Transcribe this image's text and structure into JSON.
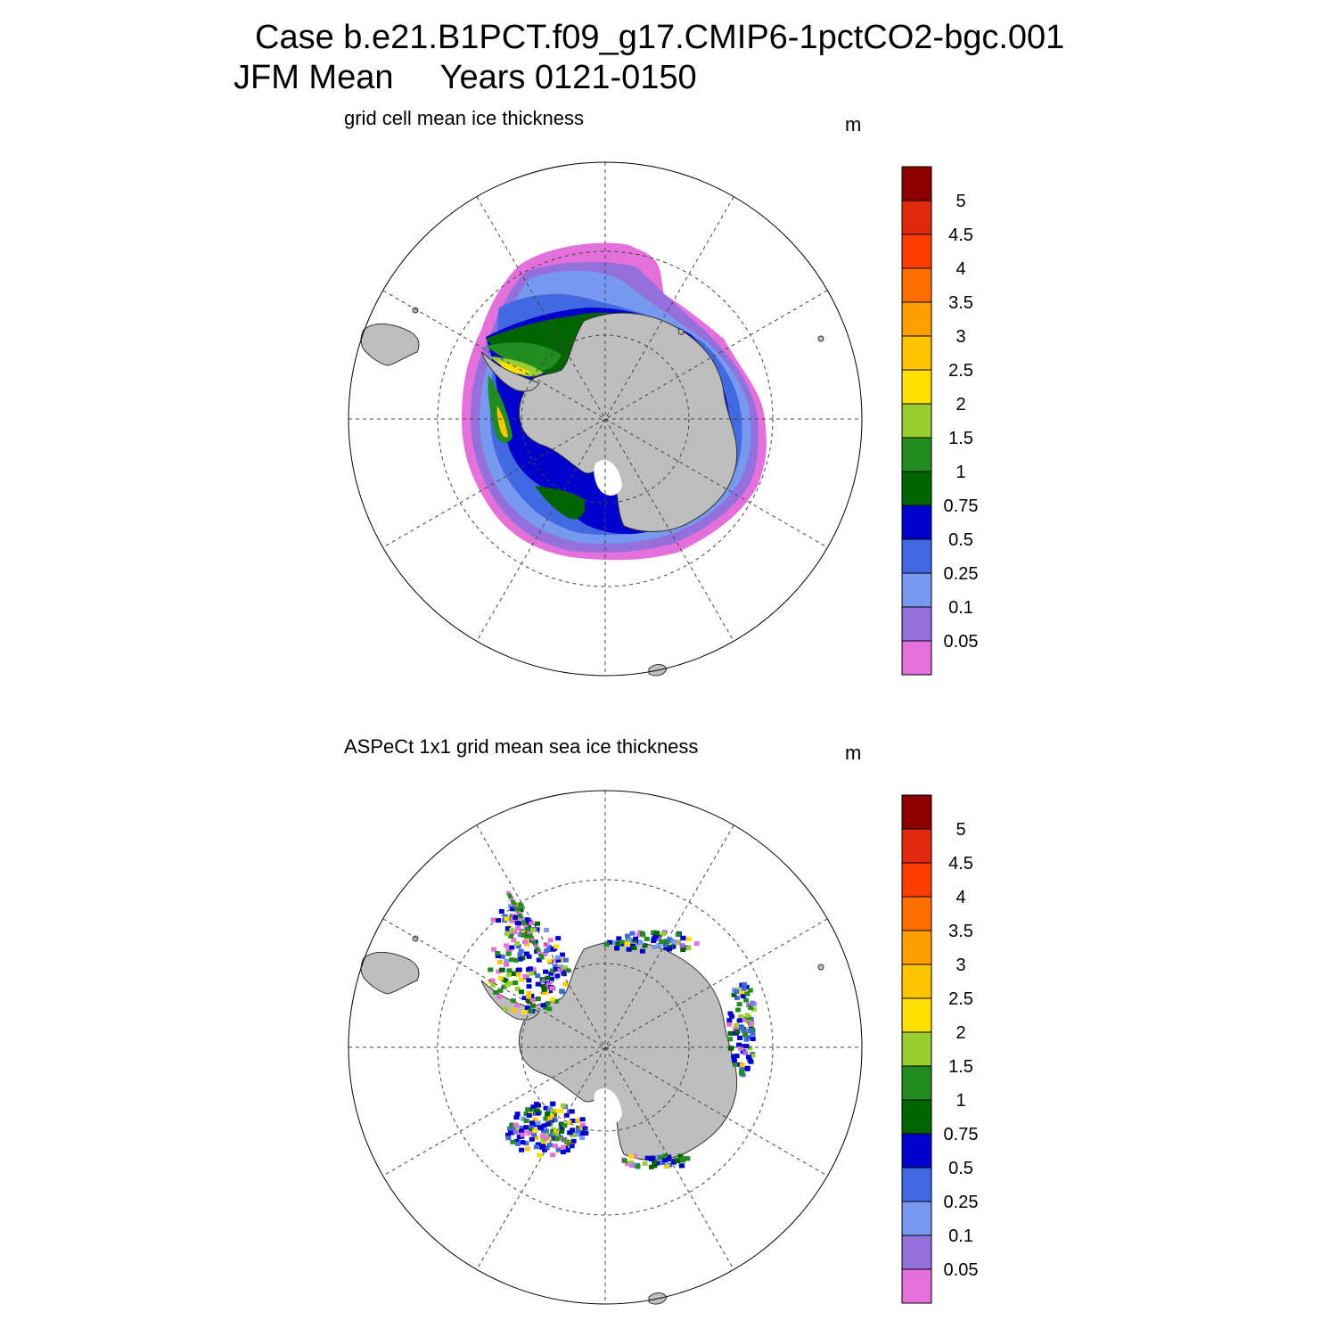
{
  "header": {
    "line1": "Case b.e21.B1PCT.f09_g17.CMIP6-1pctCO2-bgc.001",
    "line2": "JFM Mean     Years 0121-0150"
  },
  "panels": [
    {
      "id": "model",
      "title": "grid cell mean ice thickness",
      "units": "m"
    },
    {
      "id": "obs",
      "title": "ASPeCt 1x1 grid mean sea ice thickness",
      "units": "m"
    }
  ],
  "colorbar": {
    "colors": [
      "#e370db",
      "#9370db",
      "#7799f0",
      "#4169e1",
      "#0000cd",
      "#006400",
      "#228b22",
      "#9acd32",
      "#ffe000",
      "#ffc400",
      "#ffa000",
      "#ff6e00",
      "#ff3c00",
      "#e0280e",
      "#8b0000"
    ],
    "labels": [
      "0.05",
      "0.1",
      "0.25",
      "0.5",
      "0.75",
      "1",
      "1.5",
      "2",
      "2.5",
      "3",
      "3.5",
      "4",
      "4.5",
      "5"
    ]
  },
  "map": {
    "projection": "south polar stereographic",
    "land_color": "#bebebe",
    "meridians_deg": [
      0,
      30,
      60,
      90,
      120,
      150,
      180,
      210,
      240,
      270,
      300,
      330
    ],
    "parallel_rings": 2
  }
}
